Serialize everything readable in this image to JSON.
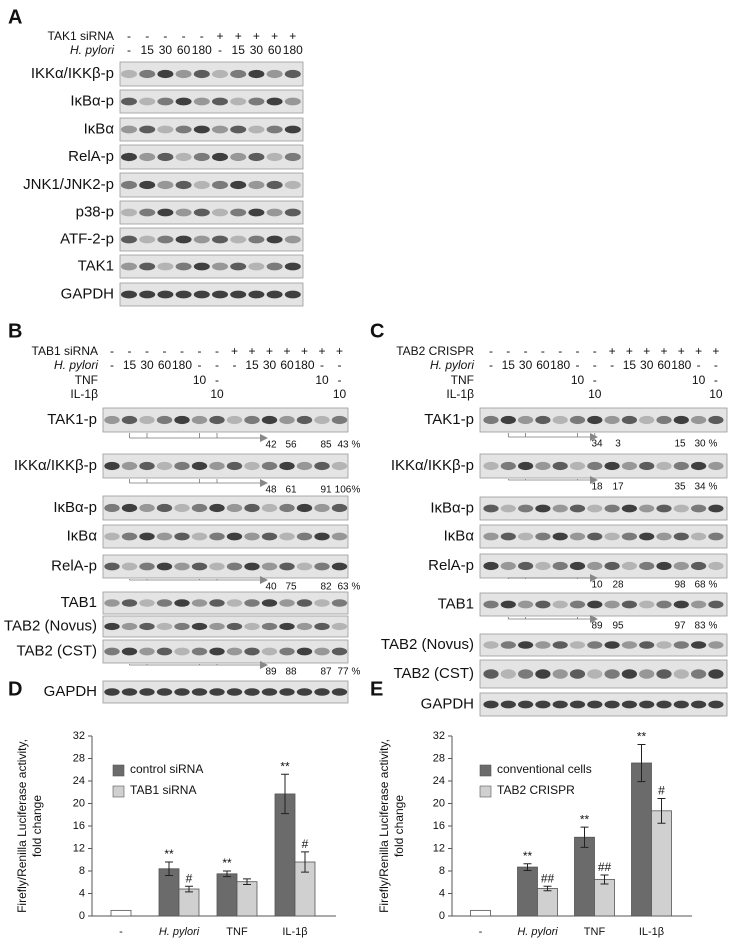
{
  "blot_panels": [
    {
      "letter": "A",
      "header": [
        {
          "label": "TAK1 siRNA",
          "lanes": [
            "-",
            "-",
            "-",
            "-",
            "-",
            "+",
            "+",
            "+",
            "+",
            "+"
          ]
        },
        {
          "label": "H. pylori",
          "lanes": [
            "-",
            "15",
            "30",
            "60",
            "180",
            "-",
            "15",
            "30",
            "60",
            "180"
          ]
        }
      ],
      "blots": [
        {
          "label": "IKKα/IKKβ-p"
        },
        {
          "label": "IκBα-p"
        },
        {
          "label": "IκBα"
        },
        {
          "label": "RelA-p"
        },
        {
          "label": "JNK1/JNK2-p"
        },
        {
          "label": "p38-p"
        },
        {
          "label": "ATF-2-p"
        },
        {
          "label": "TAK1"
        },
        {
          "label": "GAPDH"
        }
      ]
    },
    {
      "letter": "B",
      "header": [
        {
          "label": "TAB1 siRNA",
          "lanes": [
            "-",
            "-",
            "-",
            "-",
            "-",
            "-",
            "-",
            "+",
            "+",
            "+",
            "+",
            "+",
            "+",
            "+"
          ]
        },
        {
          "label": "H. pylori",
          "lanes": [
            "-",
            "15",
            "30",
            "60",
            "180",
            "-",
            "-",
            "-",
            "15",
            "30",
            "60",
            "180",
            "-",
            "-"
          ]
        },
        {
          "label": "TNF",
          "lanes": [
            null,
            null,
            null,
            null,
            null,
            "10",
            "-",
            null,
            null,
            null,
            null,
            null,
            "10",
            "-"
          ]
        },
        {
          "label": "IL-1β",
          "lanes": [
            null,
            null,
            null,
            null,
            null,
            null,
            "10",
            null,
            null,
            null,
            null,
            null,
            null,
            "10"
          ]
        }
      ],
      "blots": [
        {
          "label": "TAK1-p",
          "quant": [
            42,
            56,
            85,
            43
          ],
          "unit": "%"
        },
        {
          "label": "IKKα/IKKβ-p",
          "quant": [
            48,
            61,
            91,
            106
          ],
          "unit": "%"
        },
        {
          "label": "IκBα-p"
        },
        {
          "label": "IκBα"
        },
        {
          "label": "RelA-p",
          "quant": [
            40,
            75,
            82,
            63
          ],
          "unit": "%"
        },
        {
          "label": "TAB1"
        },
        {
          "label": "TAB2 (Novus)"
        },
        {
          "label": "TAB2 (CST)",
          "quant": [
            89,
            88,
            87,
            77
          ],
          "unit": "%"
        },
        {
          "label": "GAPDH"
        }
      ]
    },
    {
      "letter": "C",
      "header": [
        {
          "label": "TAB2 CRISPR",
          "lanes": [
            "-",
            "-",
            "-",
            "-",
            "-",
            "-",
            "-",
            "+",
            "+",
            "+",
            "+",
            "+",
            "+",
            "+"
          ]
        },
        {
          "label": "H. pylori",
          "lanes": [
            "-",
            "15",
            "30",
            "60",
            "180",
            "-",
            "-",
            "-",
            "15",
            "30",
            "60",
            "180",
            "-",
            "-"
          ]
        },
        {
          "label": "TNF",
          "lanes": [
            null,
            null,
            null,
            null,
            null,
            "10",
            "-",
            null,
            null,
            null,
            null,
            null,
            "10",
            "-"
          ]
        },
        {
          "label": "IL-1β",
          "lanes": [
            null,
            null,
            null,
            null,
            null,
            null,
            "10",
            null,
            null,
            null,
            null,
            null,
            null,
            "10"
          ]
        }
      ],
      "blots": [
        {
          "label": "TAK1-p",
          "quant": [
            34,
            3,
            15,
            30
          ],
          "unit": "%"
        },
        {
          "label": "IKKα/IKKβ-p",
          "quant": [
            18,
            17,
            35,
            34
          ],
          "unit": "%"
        },
        {
          "label": "IκBα-p"
        },
        {
          "label": "IκBα"
        },
        {
          "label": "RelA-p",
          "quant": [
            10,
            28,
            98,
            68
          ],
          "unit": "%"
        },
        {
          "label": "TAB1",
          "quant": [
            89,
            95,
            97,
            83
          ],
          "unit": "%"
        },
        {
          "label": "TAB2 (Novus)"
        },
        {
          "label": "TAB2 (CST)"
        },
        {
          "label": "GAPDH"
        }
      ]
    }
  ],
  "chart_data": [
    {
      "type": "bar",
      "letter": "D",
      "y_label": "Firefly/Renilla Luciferase activity, fold change",
      "categories": [
        "-",
        "H. pylori",
        "TNF",
        "IL-1β"
      ],
      "ylim": [
        0,
        32
      ],
      "yticks": [
        0,
        4,
        8,
        12,
        16,
        20,
        24,
        28,
        32
      ],
      "series": [
        {
          "name": "control siRNA",
          "color": "#6b6b6b",
          "colors": [
            "#ffffff",
            "#6b6b6b",
            "#6b6b6b",
            "#6b6b6b"
          ],
          "values": [
            1,
            8.4,
            7.5,
            21.7
          ],
          "errors": [
            null,
            1.2,
            0.5,
            3.5
          ],
          "labels": [
            null,
            "**",
            "**",
            "**"
          ]
        },
        {
          "name": "TAB1 siRNA",
          "color": "#d0d0d0",
          "values": [
            null,
            4.8,
            6.1,
            9.6
          ],
          "errors": [
            null,
            0.5,
            0.5,
            1.8
          ],
          "labels": [
            null,
            "#",
            null,
            "#"
          ]
        }
      ]
    },
    {
      "type": "bar",
      "letter": "E",
      "y_label": "Firefly/Renilla Luciferase activity, fold change",
      "categories": [
        "-",
        "H. pylori",
        "TNF",
        "IL-1β"
      ],
      "ylim": [
        0,
        32
      ],
      "yticks": [
        0,
        4,
        8,
        12,
        16,
        20,
        24,
        28,
        32
      ],
      "series": [
        {
          "name": "conventional  cells",
          "color": "#6b6b6b",
          "colors": [
            "#ffffff",
            "#6b6b6b",
            "#6b6b6b",
            "#6b6b6b"
          ],
          "values": [
            1,
            8.7,
            14,
            27.2
          ],
          "errors": [
            null,
            0.6,
            1.8,
            3.3
          ],
          "labels": [
            null,
            "**",
            "**",
            "**"
          ]
        },
        {
          "name": "TAB2 CRISPR",
          "color": "#d0d0d0",
          "values": [
            null,
            4.9,
            6.5,
            18.7
          ],
          "errors": [
            null,
            0.4,
            0.8,
            2.2
          ],
          "labels": [
            null,
            "##",
            "##",
            "#"
          ]
        }
      ]
    }
  ]
}
